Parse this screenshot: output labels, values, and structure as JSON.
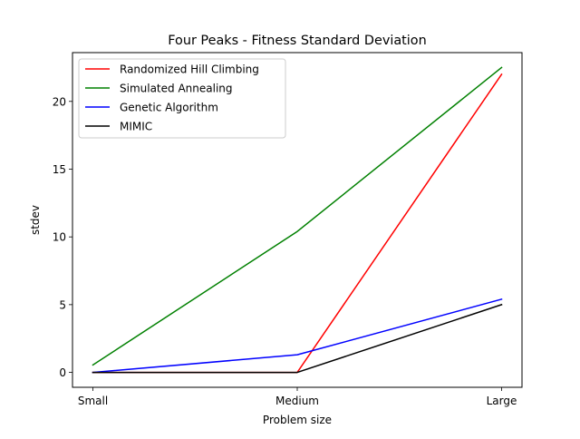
{
  "chart_data": {
    "type": "line",
    "title": "Four Peaks - Fitness Standard Deviation",
    "xlabel": "Problem size",
    "ylabel": "stdev",
    "categories": [
      "Small",
      "Medium",
      "Large"
    ],
    "ylim": [
      -1.1,
      23.6
    ],
    "yticks": [
      0,
      5,
      10,
      15,
      20
    ],
    "grid": false,
    "legend_position": "top-left",
    "series": [
      {
        "name": "Randomized Hill Climbing",
        "color": "#ff0000",
        "values": [
          0,
          0,
          22.0
        ]
      },
      {
        "name": "Simulated Annealing",
        "color": "#008000",
        "values": [
          0.55,
          10.4,
          22.5
        ]
      },
      {
        "name": "Genetic Algorithm",
        "color": "#0000ff",
        "values": [
          0,
          1.3,
          5.4
        ]
      },
      {
        "name": "MIMIC",
        "color": "#000000",
        "values": [
          0,
          0,
          5.0
        ]
      }
    ]
  }
}
